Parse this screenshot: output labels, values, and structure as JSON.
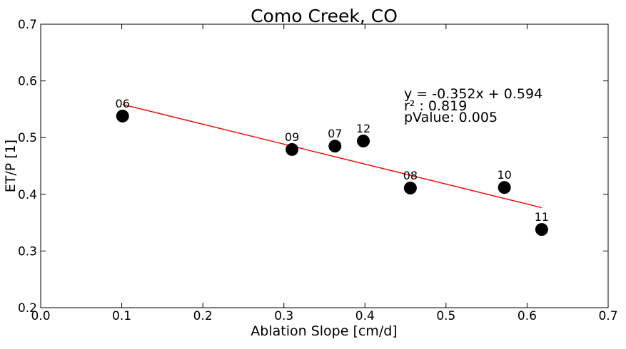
{
  "chart_data": {
    "type": "scatter",
    "title": "Como Creek, CO",
    "xlabel": "Ablation Slope [cm/d]",
    "ylabel": "ET/P [1]",
    "xlim": [
      0.0,
      0.7
    ],
    "ylim": [
      0.2,
      0.7
    ],
    "xticks": [
      "0.0",
      "0.1",
      "0.2",
      "0.3",
      "0.4",
      "0.5",
      "0.6",
      "0.7"
    ],
    "yticks": [
      "0.2",
      "0.3",
      "0.4",
      "0.5",
      "0.6",
      "0.7"
    ],
    "grid": false,
    "points": [
      {
        "label": "06",
        "x": 0.101,
        "y": 0.538
      },
      {
        "label": "09",
        "x": 0.31,
        "y": 0.479
      },
      {
        "label": "07",
        "x": 0.363,
        "y": 0.485
      },
      {
        "label": "12",
        "x": 0.398,
        "y": 0.494
      },
      {
        "label": "08",
        "x": 0.456,
        "y": 0.411
      },
      {
        "label": "10",
        "x": 0.572,
        "y": 0.412
      },
      {
        "label": "11",
        "x": 0.618,
        "y": 0.338
      }
    ],
    "fit_line": {
      "slope": -0.352,
      "intercept": 0.594,
      "x_range": [
        0.101,
        0.618
      ],
      "color": "#ff0000"
    },
    "annotation": {
      "equation": "y = -0.352x + 0.594",
      "r2": "r² : 0.819",
      "pvalue": "pValue: 0.005"
    },
    "marker_color": "#000000"
  }
}
